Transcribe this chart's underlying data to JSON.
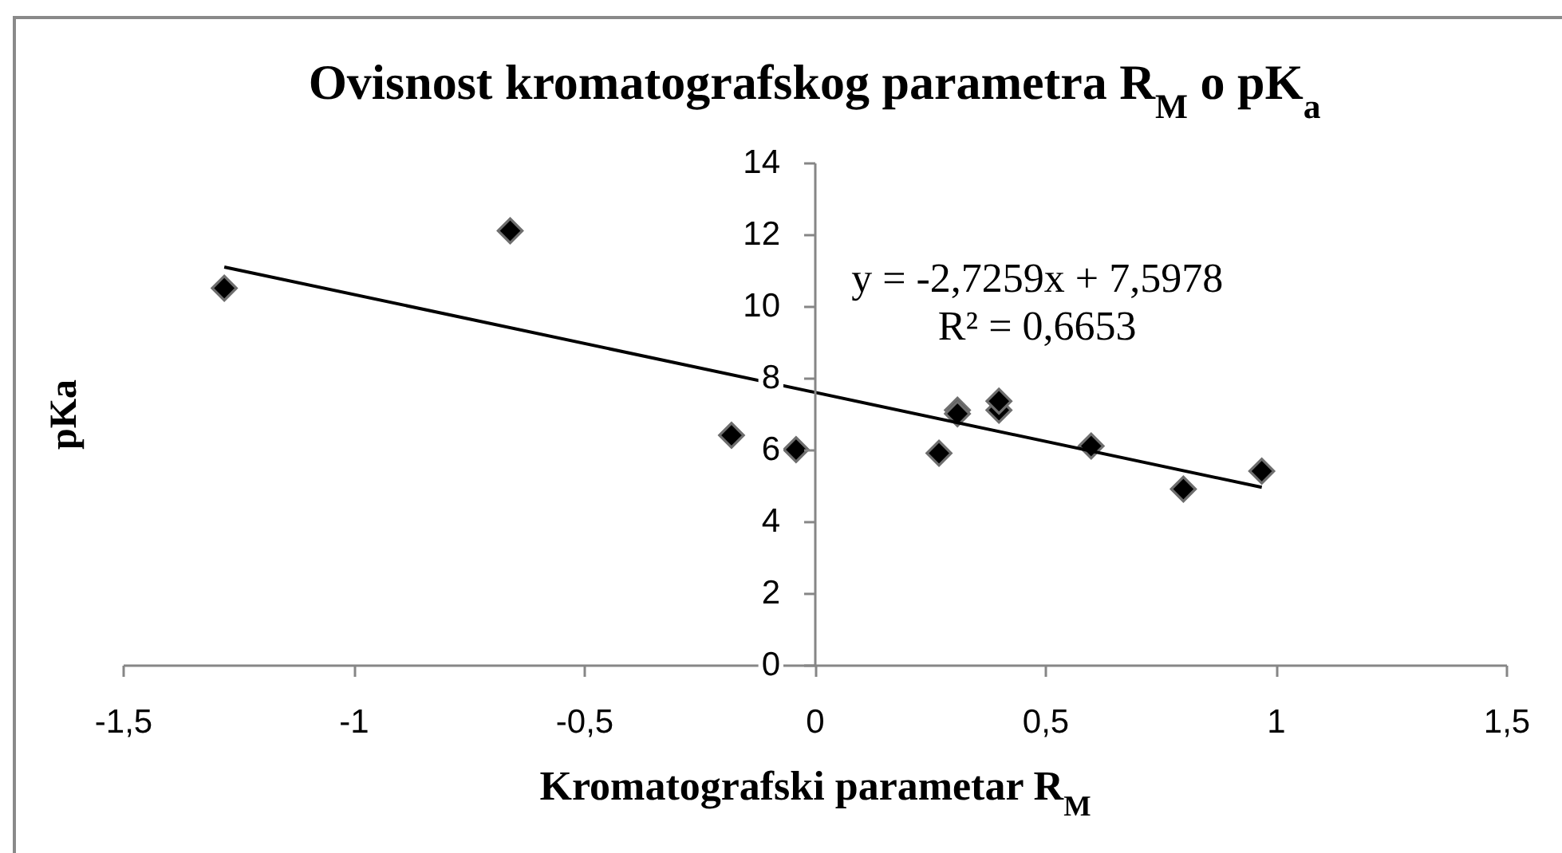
{
  "chart_data": {
    "type": "scatter",
    "title": "Ovisnost kromatografskog parametra R$_{M}$ o pK$_{a}$",
    "xlabel": "Kromatografski parametar R$_{M}$",
    "ylabel": "pKa",
    "series": [
      {
        "color": "#000000",
        "marker": "diamond",
        "x": [
          -1.28,
          -0.66,
          -0.18,
          -0.04,
          0.27,
          0.31,
          0.31,
          0.4,
          0.4,
          0.6,
          0.8,
          0.97
        ],
        "values": [
          10.5,
          12.1,
          6.4,
          6.0,
          5.9,
          7.1,
          7.0,
          7.1,
          7.35,
          6.1,
          4.9,
          5.4
        ]
      },
      {
        "type": "line",
        "color": "#000000",
        "x": [
          -1.28,
          0.97
        ],
        "values": [
          11.09,
          4.95
        ]
      }
    ],
    "xlim": [
      -1.5,
      1.5
    ],
    "xticks": [
      {
        "value": -1.5,
        "label": "-1,5"
      },
      -1,
      {
        "value": -0.5,
        "label": "-0,5"
      },
      0,
      {
        "value": 0.5,
        "label": "0,5"
      },
      1,
      {
        "value": 1.5,
        "label": "1,5"
      }
    ],
    "ylim": [
      0,
      14
    ],
    "yticks": [
      0,
      2,
      4,
      6,
      8,
      10,
      12,
      14
    ],
    "annotations": [
      "y = -2,7259x + 7,5978",
      "R² = 0,6653"
    ]
  }
}
